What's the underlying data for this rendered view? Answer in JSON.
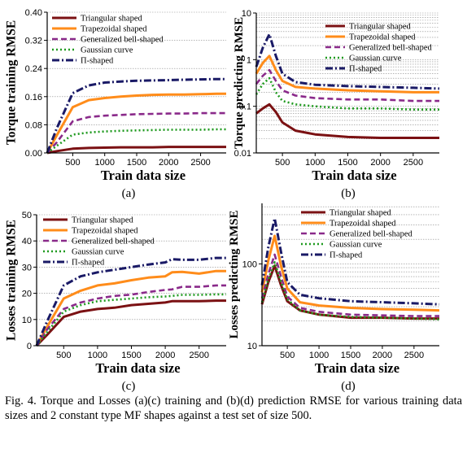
{
  "figure": {
    "caption": "Fig. 4. Torque and Losses (a)(c) training and (b)(d) prediction RMSE for various training data sizes and 2 constant type MF shapes against a test set of size 500."
  },
  "legend_series": [
    "Triangular shaped",
    "Trapezoidal shaped",
    "Generalized bell-shaped",
    "Gaussian curve",
    "Π-shaped"
  ],
  "colors": {
    "triangular": "#7b1113",
    "trapezoidal": "#ff8c1a",
    "bell": "#8a2a8a",
    "gaussian": "#1f9a1f",
    "pi": "#1a1a66"
  },
  "chart_data": [
    {
      "panel_label": "(a)",
      "type": "line",
      "xlabel": "Train data size",
      "ylabel": "Torque training RMSE",
      "xlim": [
        100,
        2900
      ],
      "ylim": [
        0,
        0.4
      ],
      "yscale": "linear",
      "xticks": [
        500,
        1000,
        1500,
        2000,
        2500
      ],
      "yticks": [
        0.0,
        0.08,
        0.16,
        0.24,
        0.32,
        0.4
      ],
      "ytick_labels": [
        "0.00",
        "0.08",
        "0.16",
        "0.24",
        "0.32",
        "0.40"
      ],
      "grid": true,
      "legend": "top-left",
      "x": [
        100,
        250,
        500,
        750,
        1000,
        1250,
        1500,
        1750,
        2000,
        2250,
        2500,
        2750,
        2900
      ],
      "series": [
        {
          "name": "Triangular shaped",
          "values": [
            0.0,
            0.005,
            0.012,
            0.014,
            0.015,
            0.016,
            0.016,
            0.016,
            0.017,
            0.017,
            0.017,
            0.017,
            0.017
          ]
        },
        {
          "name": "Trapezoidal shaped",
          "values": [
            0.0,
            0.05,
            0.13,
            0.15,
            0.156,
            0.16,
            0.163,
            0.165,
            0.166,
            0.166,
            0.167,
            0.168,
            0.168
          ]
        },
        {
          "name": "Generalized bell-shaped",
          "values": [
            0.0,
            0.03,
            0.09,
            0.102,
            0.106,
            0.108,
            0.11,
            0.111,
            0.112,
            0.112,
            0.113,
            0.113,
            0.113
          ]
        },
        {
          "name": "Gaussian curve",
          "values": [
            0.0,
            0.02,
            0.052,
            0.058,
            0.061,
            0.063,
            0.064,
            0.065,
            0.066,
            0.066,
            0.066,
            0.067,
            0.067
          ]
        },
        {
          "name": "Π-shaped",
          "values": [
            0.0,
            0.07,
            0.17,
            0.192,
            0.2,
            0.203,
            0.205,
            0.206,
            0.207,
            0.208,
            0.209,
            0.21,
            0.21
          ]
        }
      ]
    },
    {
      "panel_label": "(b)",
      "type": "line",
      "xlabel": "Train data size",
      "ylabel": "Torque predicting RMSE",
      "xlim": [
        100,
        2900
      ],
      "ylim": [
        0.01,
        10
      ],
      "yscale": "log",
      "xticks": [
        500,
        1000,
        1500,
        2000,
        2500
      ],
      "yticks": [
        0.01,
        0.1,
        1,
        10
      ],
      "ytick_labels": [
        "0.01",
        "0.1",
        "1",
        "10"
      ],
      "grid": true,
      "legend": "top-right",
      "x": [
        100,
        200,
        300,
        400,
        500,
        700,
        1000,
        1500,
        2000,
        2500,
        2900
      ],
      "series": [
        {
          "name": "Triangular shaped",
          "values": [
            0.07,
            0.09,
            0.11,
            0.075,
            0.045,
            0.03,
            0.025,
            0.022,
            0.021,
            0.021,
            0.021
          ]
        },
        {
          "name": "Trapezoidal shaped",
          "values": [
            0.5,
            0.85,
            1.2,
            0.6,
            0.35,
            0.26,
            0.24,
            0.22,
            0.21,
            0.2,
            0.2
          ]
        },
        {
          "name": "Generalized bell-shaped",
          "values": [
            0.3,
            0.45,
            0.6,
            0.35,
            0.22,
            0.17,
            0.15,
            0.14,
            0.14,
            0.13,
            0.13
          ]
        },
        {
          "name": "Gaussian curve",
          "values": [
            0.18,
            0.3,
            0.4,
            0.2,
            0.13,
            0.11,
            0.1,
            0.09,
            0.09,
            0.085,
            0.085
          ]
        },
        {
          "name": "Π-shaped",
          "values": [
            0.7,
            1.8,
            3.5,
            1.2,
            0.5,
            0.33,
            0.29,
            0.27,
            0.26,
            0.25,
            0.24
          ]
        }
      ]
    },
    {
      "panel_label": "(c)",
      "type": "line",
      "xlabel": "Train data size",
      "ylabel": "Losses training RMSE",
      "xlim": [
        100,
        2900
      ],
      "ylim": [
        0,
        50
      ],
      "yscale": "linear",
      "xticks": [
        500,
        1000,
        1500,
        2000,
        2500
      ],
      "yticks": [
        0,
        10,
        20,
        30,
        40,
        50
      ],
      "ytick_labels": [
        "0",
        "10",
        "20",
        "30",
        "40",
        "50"
      ],
      "grid": true,
      "legend": "top-left",
      "x": [
        100,
        250,
        500,
        750,
        1000,
        1250,
        1500,
        1750,
        2000,
        2100,
        2250,
        2500,
        2750,
        2900
      ],
      "series": [
        {
          "name": "Triangular shaped",
          "values": [
            0,
            4,
            11,
            13,
            14,
            14.5,
            15.5,
            16,
            16.5,
            17,
            17,
            17,
            17.2,
            17.2
          ]
        },
        {
          "name": "Trapezoidal shaped",
          "values": [
            0,
            7,
            18,
            21,
            23,
            23.8,
            25,
            26,
            26.5,
            28,
            28.2,
            27.5,
            28.5,
            28.5
          ]
        },
        {
          "name": "Generalized bell-shaped",
          "values": [
            0,
            6,
            14,
            16.5,
            18,
            19,
            19.5,
            20.5,
            21.3,
            21.5,
            22.5,
            22.5,
            23,
            23
          ]
        },
        {
          "name": "Gaussian curve",
          "values": [
            0,
            5,
            13,
            15.5,
            17,
            17.5,
            18,
            18.5,
            18.8,
            19,
            19.4,
            19.4,
            19.6,
            19.6
          ]
        },
        {
          "name": "Π-shaped",
          "values": [
            0,
            9,
            23,
            26.5,
            28,
            29,
            30,
            31,
            31.8,
            33,
            32.8,
            32.8,
            33.5,
            33.5
          ]
        }
      ]
    },
    {
      "panel_label": "(d)",
      "type": "line",
      "xlabel": "Train data size",
      "ylabel": "Losses predicting RMSE",
      "xlim": [
        100,
        2900
      ],
      "ylim": [
        10,
        550
      ],
      "yscale": "log",
      "xticks": [
        500,
        1000,
        1500,
        2000,
        2500
      ],
      "yticks": [
        10,
        100
      ],
      "ytick_labels": [
        "10",
        "100"
      ],
      "grid": true,
      "legend": "top-right",
      "x": [
        100,
        200,
        300,
        400,
        500,
        700,
        1000,
        1500,
        2000,
        2500,
        2900
      ],
      "series": [
        {
          "name": "Triangular shaped",
          "values": [
            32,
            60,
            95,
            55,
            35,
            27,
            24,
            22,
            22,
            21.5,
            21.5
          ]
        },
        {
          "name": "Trapezoidal shaped",
          "values": [
            45,
            110,
            220,
            95,
            50,
            34,
            31,
            29,
            28,
            27.5,
            27
          ]
        },
        {
          "name": "Generalized bell-shaped",
          "values": [
            38,
            75,
            130,
            70,
            40,
            29,
            26,
            24,
            23.5,
            23,
            23
          ]
        },
        {
          "name": "Gaussian curve",
          "values": [
            34,
            65,
            105,
            60,
            37,
            27,
            24,
            22.5,
            22,
            21.5,
            21
          ]
        },
        {
          "name": "Π-shaped",
          "values": [
            55,
            160,
            360,
            140,
            60,
            42,
            38,
            35,
            34,
            33,
            32
          ]
        }
      ]
    }
  ]
}
